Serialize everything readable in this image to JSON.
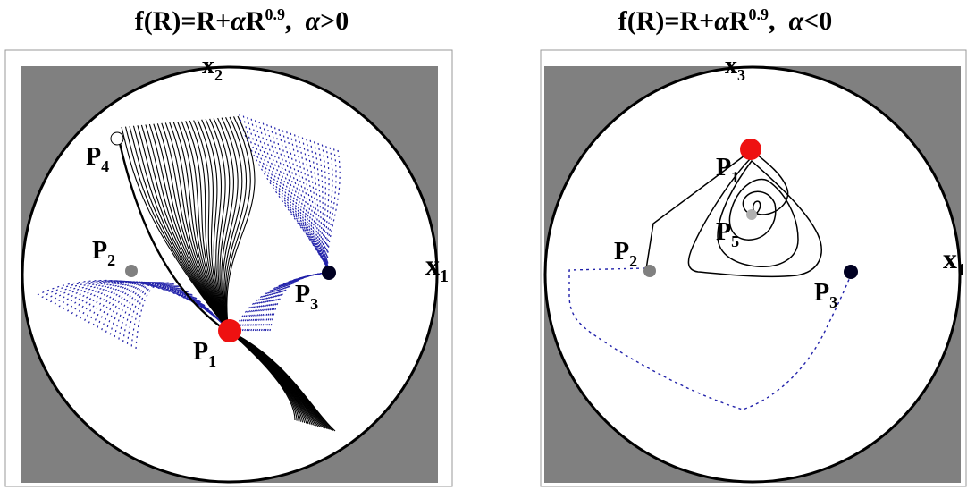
{
  "panels": [
    {
      "title": {
        "prefix": "f(R)=R+",
        "alpha": "α",
        "mid": "R",
        "exponent": "0.9",
        "cond_sep": ",  ",
        "cond_alpha": "α",
        "cond": ">0"
      },
      "axis_top": {
        "base": "x",
        "sub": "2"
      },
      "axis_right": {
        "base": "x",
        "sub": "1"
      },
      "points": [
        {
          "name": "P",
          "sub": "4",
          "color": "#ffffff"
        },
        {
          "name": "P",
          "sub": "2",
          "color": "#808080"
        },
        {
          "name": "P",
          "sub": "3",
          "color": "#000022"
        },
        {
          "name": "P",
          "sub": "1",
          "color": "#ee1111"
        }
      ]
    },
    {
      "title": {
        "prefix": "f(R)=R+",
        "alpha": "α",
        "mid": "R",
        "exponent": "0.9",
        "cond_sep": ",  ",
        "cond_alpha": "α",
        "cond": "<0"
      },
      "axis_top": {
        "base": "x",
        "sub": "3"
      },
      "axis_right": {
        "base": "x",
        "sub": "1"
      },
      "points": [
        {
          "name": "P",
          "sub": "1",
          "color": "#ee1111"
        },
        {
          "name": "P",
          "sub": "5",
          "color": "#b0b0b0"
        },
        {
          "name": "P",
          "sub": "2",
          "color": "#808080"
        },
        {
          "name": "P",
          "sub": "3",
          "color": "#000022"
        }
      ]
    }
  ],
  "colors": {
    "background_gray": "#808080",
    "trajectory_solid": "#000000",
    "trajectory_dashed": "#2222aa"
  }
}
